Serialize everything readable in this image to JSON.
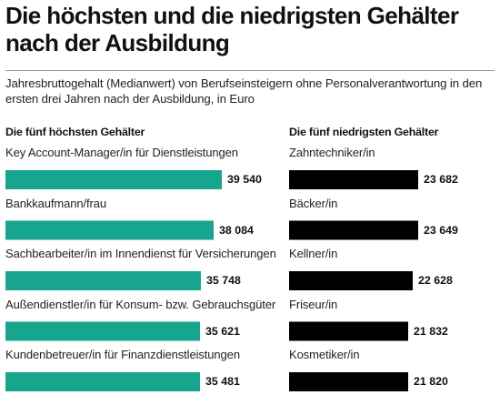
{
  "chart_data": [
    {
      "type": "bar",
      "orientation": "horizontal",
      "title": "Die höchsten und die niedrigsten Gehälter nach der Ausbildung",
      "subtitle": "Jahresbruttogehalt (Medianwert) von Berufseinsteigern ohne Personalverantwortung in den ersten drei Jahren nach der Ausbildung, in Euro",
      "panel_title": "Die fünf höchsten Gehälter",
      "color": "#17a58e",
      "categories": [
        "Key Account-Manager/in für Dienstleistungen",
        "Bankkaufmann/frau",
        "Sachbearbeiter/in im Innendienst für Versicherungen",
        "Außendienstler/in für Konsum- bzw. Gebrauchsgüter",
        "Kundenbetreuer/in für Finanzdienstleistungen"
      ],
      "values": [
        39540,
        38084,
        35748,
        35621,
        35481
      ],
      "value_labels": [
        "39 540",
        "38 084",
        "35 748",
        "35 621",
        "35 481"
      ],
      "xlim": [
        0,
        39540
      ],
      "grid": false
    },
    {
      "type": "bar",
      "orientation": "horizontal",
      "panel_title": "Die fünf niedrigsten Gehälter",
      "color": "#000000",
      "categories": [
        "Zahntechniker/in",
        "Bäcker/in",
        "Kellner/in",
        "Friseur/in",
        "Kosmetiker/in"
      ],
      "values": [
        23682,
        23649,
        22628,
        21832,
        21820
      ],
      "value_labels": [
        "23 682",
        "23 649",
        "22 628",
        "21 832",
        "21 820"
      ],
      "xlim": [
        0,
        23682
      ],
      "grid": false
    }
  ]
}
